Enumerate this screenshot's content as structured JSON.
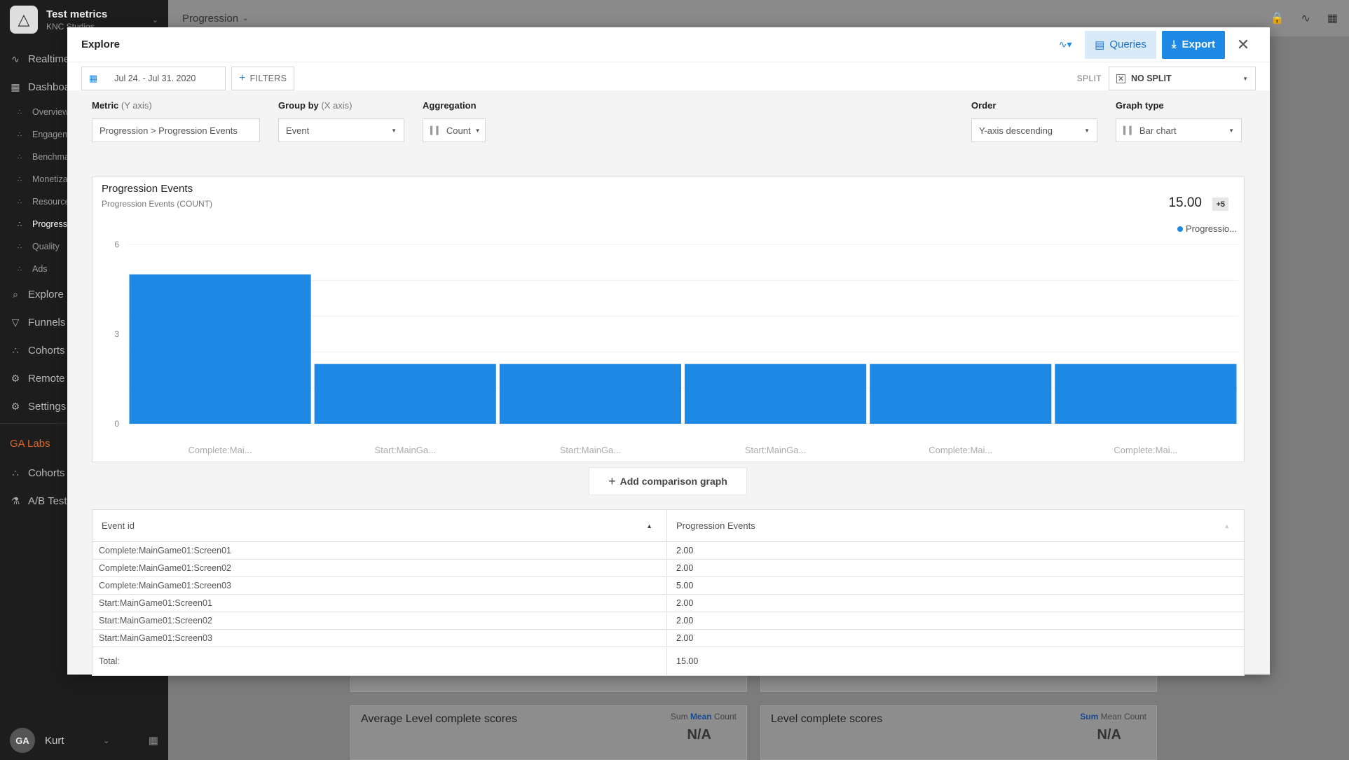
{
  "app": {
    "project_name": "Test metrics",
    "studio_name": "KNC Studios",
    "page_title": "Progression",
    "user_name": "Kurt",
    "avatar_text": "GA"
  },
  "sidebar": {
    "items": [
      {
        "label": "Realtime",
        "icon": "pulse-icon"
      },
      {
        "label": "Dashboards",
        "icon": "grid-icon"
      }
    ],
    "dashboards": [
      {
        "label": "Overview",
        "active": false
      },
      {
        "label": "Engagement",
        "active": false
      },
      {
        "label": "Benchmarks",
        "active": false
      },
      {
        "label": "Monetization",
        "active": false
      },
      {
        "label": "Resources",
        "active": false
      },
      {
        "label": "Progression",
        "active": true
      },
      {
        "label": "Quality",
        "active": false
      },
      {
        "label": "Ads",
        "active": false
      }
    ],
    "items2": [
      {
        "label": "Explore",
        "icon": "search-icon"
      },
      {
        "label": "Funnels",
        "icon": "funnel-icon"
      },
      {
        "label": "Cohorts",
        "icon": "cohorts-icon"
      },
      {
        "label": "Remote Configs",
        "icon": "gear-icon"
      },
      {
        "label": "Settings",
        "icon": "gear-icon"
      }
    ],
    "labs_label": "GA Labs",
    "labs_items": [
      {
        "label": "Cohorts",
        "icon": "cohorts-icon"
      },
      {
        "label": "A/B Testing",
        "icon": "flask-icon"
      }
    ]
  },
  "background_cards": [
    {
      "title": "Average Level complete scores",
      "metrics": [
        "Sum",
        "Mean",
        "Count"
      ],
      "selected": "Mean",
      "value": "N/A"
    },
    {
      "title": "Level complete scores",
      "metrics": [
        "Sum",
        "Mean",
        "Count"
      ],
      "selected": "Sum",
      "value": "N/A"
    }
  ],
  "explore": {
    "title": "Explore",
    "queries_label": "Queries",
    "export_label": "Export",
    "date_range": "Jul 24. - Jul 31. 2020",
    "filters_label": "FILTERS",
    "split_label": "SPLIT",
    "split_value": "NO SPLIT",
    "metric_label": "Metric",
    "metric_axis": "(Y axis)",
    "metric_value": "Progression > Progression Events",
    "groupby_label": "Group by",
    "groupby_axis": "(X axis)",
    "groupby_value": "Event",
    "aggregation_label": "Aggregation",
    "aggregation_value": "Count",
    "order_label": "Order",
    "order_value": "Y-axis descending",
    "graphtype_label": "Graph type",
    "graphtype_value": "Bar chart",
    "add_comparison_label": "Add comparison graph"
  },
  "chart_data": {
    "type": "bar",
    "title": "Progression Events",
    "subtitle": "Progression Events (COUNT)",
    "total": "15.00",
    "badge": "+5",
    "legend": "Progressio...",
    "legend_color": "#1e88e5",
    "categories": [
      "Complete:Mai...",
      "Start:MainGa...",
      "Start:MainGa...",
      "Start:MainGa...",
      "Complete:Mai...",
      "Complete:Mai..."
    ],
    "values": [
      5,
      2,
      2,
      2,
      2,
      2
    ],
    "yticks": [
      0,
      3,
      6
    ],
    "ylim": [
      0,
      6
    ],
    "grid": true,
    "bar_color": "#1e88e5"
  },
  "table": {
    "col1_header": "Event id",
    "col2_header": "Progression Events",
    "rows": [
      {
        "event": "Complete:MainGame01:Screen01",
        "value": "2.00"
      },
      {
        "event": "Complete:MainGame01:Screen02",
        "value": "2.00"
      },
      {
        "event": "Complete:MainGame01:Screen03",
        "value": "5.00"
      },
      {
        "event": "Start:MainGame01:Screen01",
        "value": "2.00"
      },
      {
        "event": "Start:MainGame01:Screen02",
        "value": "2.00"
      },
      {
        "event": "Start:MainGame01:Screen03",
        "value": "2.00"
      }
    ],
    "total_label": "Total:",
    "total_value": "15.00"
  }
}
